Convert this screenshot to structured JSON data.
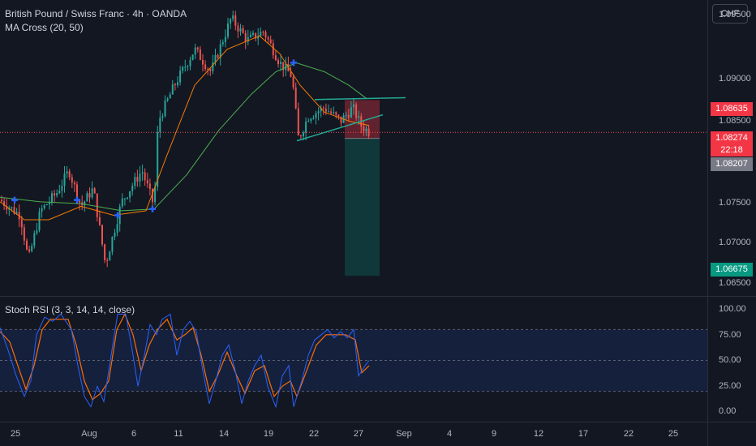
{
  "header": {
    "title": "British Pound / Swiss Franc · 4h · OANDA",
    "indicator_ma": "MA Cross (20, 50)",
    "currency": "CHF"
  },
  "stoch": {
    "label": "Stoch RSI (3, 3, 14, 14, close)"
  },
  "price_axis": {
    "ticks": [
      "1.09500",
      "1.09000",
      "1.08500",
      "1.07500",
      "1.07000",
      "1.06500"
    ],
    "tags": {
      "target_top": "1.08635",
      "current_price": "1.08274",
      "countdown": "22:18",
      "entry": "1.08207",
      "target_bottom": "1.06675"
    }
  },
  "stoch_axis": {
    "ticks": [
      "100.00",
      "75.00",
      "50.00",
      "25.00",
      "0.00"
    ]
  },
  "time_axis": {
    "ticks": [
      "25",
      "Aug",
      "6",
      "11",
      "14",
      "19",
      "22",
      "27",
      "Sep",
      "4",
      "9",
      "12",
      "17",
      "22",
      "25"
    ]
  },
  "colors": {
    "background": "#131722",
    "up_candle": "#26a69a",
    "down_candle": "#ef5350",
    "ma_fast": "#f57c00",
    "ma_slow": "#4caf50",
    "cross_marker": "#2962ff",
    "trendline": "#22ab94",
    "stop_zone": "#f23645",
    "profit_zone": "#089981",
    "stoch_k": "#2962ff",
    "stoch_d": "#ff6d00"
  },
  "chart_data": {
    "type": "candlestick",
    "symbol": "GBPCHF",
    "timeframe": "4h",
    "ylim": [
      1.0645,
      1.0975
    ],
    "price_path": [
      [
        0,
        1.0752
      ],
      [
        25,
        1.0735
      ],
      [
        35,
        1.0685
      ],
      [
        50,
        1.074
      ],
      [
        70,
        1.076
      ],
      [
        85,
        1.0785
      ],
      [
        100,
        1.0745
      ],
      [
        115,
        1.0765
      ],
      [
        130,
        1.068
      ],
      [
        150,
        1.075
      ],
      [
        175,
        1.0785
      ],
      [
        190,
        1.0745
      ],
      [
        195,
        1.084
      ],
      [
        215,
        1.088
      ],
      [
        240,
        1.092
      ],
      [
        260,
        1.0895
      ],
      [
        285,
        1.0955
      ],
      [
        305,
        1.093
      ],
      [
        325,
        1.094
      ],
      [
        345,
        1.0905
      ],
      [
        360,
        1.089
      ],
      [
        368,
        1.082
      ],
      [
        380,
        1.0845
      ],
      [
        400,
        1.0855
      ],
      [
        420,
        1.084
      ],
      [
        435,
        1.0855
      ],
      [
        445,
        1.0835
      ],
      [
        455,
        1.0828
      ]
    ],
    "ma_fast_path": [
      [
        0,
        1.075
      ],
      [
        30,
        1.073
      ],
      [
        60,
        1.073
      ],
      [
        100,
        1.0745
      ],
      [
        140,
        1.0735
      ],
      [
        180,
        1.074
      ],
      [
        205,
        1.08
      ],
      [
        240,
        1.088
      ],
      [
        280,
        1.092
      ],
      [
        320,
        1.0935
      ],
      [
        345,
        1.0915
      ],
      [
        370,
        1.088
      ],
      [
        400,
        1.085
      ],
      [
        430,
        1.084
      ],
      [
        455,
        1.0835
      ]
    ],
    "ma_slow_path": [
      [
        0,
        1.0755
      ],
      [
        50,
        1.075
      ],
      [
        100,
        1.0748
      ],
      [
        150,
        1.074
      ],
      [
        190,
        1.0742
      ],
      [
        230,
        1.078
      ],
      [
        270,
        1.083
      ],
      [
        310,
        1.087
      ],
      [
        340,
        1.0895
      ],
      [
        365,
        1.0905
      ],
      [
        400,
        1.0895
      ],
      [
        430,
        1.088
      ],
      [
        452,
        1.0865
      ]
    ],
    "cross_markers": [
      [
        18,
        1.0752
      ],
      [
        95,
        1.0752
      ],
      [
        145,
        1.0735
      ],
      [
        188,
        1.0742
      ],
      [
        362,
        1.0905
      ]
    ],
    "trendlines": [
      [
        [
          388,
          1.0864
        ],
        [
          500,
          1.0866
        ]
      ],
      [
        [
          366,
          1.0818
        ],
        [
          472,
          1.0847
        ]
      ]
    ],
    "position": {
      "entry": 1.08207,
      "stop": 1.08635,
      "target": 1.06675,
      "x_start": 425,
      "x_end": 468
    },
    "current_price": 1.08274,
    "stoch_rsi": {
      "ylim": [
        -5,
        105
      ],
      "bands": [
        20,
        50,
        80
      ],
      "k_path": [
        [
          0,
          82
        ],
        [
          10,
          60
        ],
        [
          20,
          35
        ],
        [
          30,
          15
        ],
        [
          38,
          30
        ],
        [
          45,
          75
        ],
        [
          55,
          92
        ],
        [
          65,
          88
        ],
        [
          75,
          95
        ],
        [
          88,
          80
        ],
        [
          96,
          45
        ],
        [
          104,
          15
        ],
        [
          112,
          5
        ],
        [
          120,
          25
        ],
        [
          128,
          10
        ],
        [
          136,
          50
        ],
        [
          145,
          95
        ],
        [
          155,
          95
        ],
        [
          163,
          60
        ],
        [
          170,
          25
        ],
        [
          178,
          55
        ],
        [
          185,
          85
        ],
        [
          193,
          75
        ],
        [
          200,
          90
        ],
        [
          210,
          95
        ],
        [
          218,
          55
        ],
        [
          226,
          80
        ],
        [
          234,
          88
        ],
        [
          242,
          78
        ],
        [
          250,
          40
        ],
        [
          258,
          8
        ],
        [
          266,
          30
        ],
        [
          274,
          55
        ],
        [
          282,
          65
        ],
        [
          290,
          40
        ],
        [
          298,
          8
        ],
        [
          306,
          30
        ],
        [
          314,
          45
        ],
        [
          322,
          55
        ],
        [
          330,
          25
        ],
        [
          340,
          5
        ],
        [
          348,
          35
        ],
        [
          356,
          45
        ],
        [
          362,
          5
        ],
        [
          372,
          30
        ],
        [
          380,
          55
        ],
        [
          388,
          70
        ],
        [
          396,
          75
        ],
        [
          404,
          80
        ],
        [
          412,
          72
        ],
        [
          420,
          78
        ],
        [
          428,
          72
        ],
        [
          436,
          80
        ],
        [
          442,
          35
        ],
        [
          450,
          45
        ],
        [
          455,
          50
        ]
      ],
      "d_path": [
        [
          0,
          78
        ],
        [
          12,
          68
        ],
        [
          22,
          45
        ],
        [
          32,
          22
        ],
        [
          42,
          45
        ],
        [
          52,
          80
        ],
        [
          62,
          90
        ],
        [
          72,
          90
        ],
        [
          84,
          90
        ],
        [
          94,
          65
        ],
        [
          104,
          30
        ],
        [
          114,
          12
        ],
        [
          124,
          18
        ],
        [
          134,
          30
        ],
        [
          144,
          80
        ],
        [
          154,
          95
        ],
        [
          164,
          75
        ],
        [
          174,
          40
        ],
        [
          184,
          65
        ],
        [
          194,
          80
        ],
        [
          206,
          90
        ],
        [
          218,
          70
        ],
        [
          228,
          75
        ],
        [
          238,
          82
        ],
        [
          248,
          55
        ],
        [
          258,
          20
        ],
        [
          268,
          35
        ],
        [
          280,
          58
        ],
        [
          292,
          35
        ],
        [
          302,
          18
        ],
        [
          314,
          40
        ],
        [
          326,
          45
        ],
        [
          338,
          15
        ],
        [
          348,
          25
        ],
        [
          358,
          30
        ],
        [
          366,
          15
        ],
        [
          378,
          40
        ],
        [
          390,
          65
        ],
        [
          402,
          75
        ],
        [
          414,
          75
        ],
        [
          426,
          75
        ],
        [
          438,
          70
        ],
        [
          446,
          38
        ],
        [
          455,
          45
        ]
      ]
    }
  }
}
